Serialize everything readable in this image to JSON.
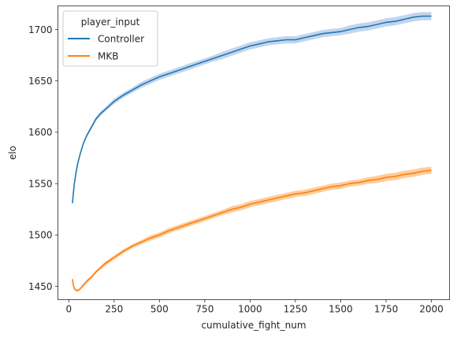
{
  "chart_data": {
    "type": "line",
    "title": "",
    "xlabel": "cumulative_fight_num",
    "ylabel": "elo",
    "xlim": [
      -60,
      2100
    ],
    "ylim": [
      1437,
      1723
    ],
    "xticks": [
      0,
      250,
      500,
      750,
      1000,
      1250,
      1500,
      1750,
      2000
    ],
    "yticks": [
      1450,
      1500,
      1550,
      1600,
      1650,
      1700
    ],
    "grid": false,
    "legend": {
      "title": "player_input",
      "position": "top-left"
    },
    "series": [
      {
        "name": "Controller",
        "color": "#1f77b4",
        "band_color": "#aec7e8",
        "x": [
          20,
          30,
          40,
          50,
          60,
          80,
          100,
          125,
          150,
          175,
          200,
          250,
          300,
          350,
          400,
          450,
          500,
          550,
          600,
          650,
          700,
          750,
          800,
          850,
          900,
          950,
          1000,
          1050,
          1100,
          1150,
          1200,
          1250,
          1300,
          1350,
          1400,
          1450,
          1500,
          1550,
          1600,
          1650,
          1700,
          1750,
          1800,
          1850,
          1900,
          1950,
          2000
        ],
        "y": [
          1531,
          1549,
          1561,
          1570,
          1577,
          1589,
          1597,
          1605,
          1613,
          1618,
          1622,
          1630,
          1636,
          1641,
          1646,
          1650,
          1654,
          1657,
          1660,
          1663,
          1666,
          1669,
          1672,
          1675,
          1678,
          1681,
          1684,
          1686,
          1688,
          1689,
          1690,
          1690,
          1692,
          1694,
          1696,
          1697,
          1698,
          1700,
          1702,
          1703,
          1705,
          1707,
          1708,
          1710,
          1712,
          1713,
          1713
        ],
        "band": [
          1,
          1,
          1,
          1,
          1,
          1.5,
          1.5,
          2,
          2,
          2,
          2,
          2.5,
          2.5,
          2.5,
          3,
          3,
          3,
          3,
          3,
          3,
          3,
          3,
          3,
          3.5,
          3.5,
          3.5,
          3.5,
          3.5,
          3.5,
          3.5,
          3.5,
          3.5,
          3.5,
          3.5,
          3.5,
          3.5,
          3.5,
          4,
          4,
          4,
          4,
          4,
          4,
          4,
          4,
          4,
          4
        ]
      },
      {
        "name": "MKB",
        "color": "#ff7f0e",
        "band_color": "#ffbb78",
        "x": [
          20,
          25,
          30,
          40,
          50,
          60,
          70,
          80,
          100,
          125,
          150,
          175,
          200,
          250,
          300,
          350,
          400,
          450,
          500,
          550,
          600,
          650,
          700,
          750,
          800,
          850,
          900,
          950,
          1000,
          1050,
          1100,
          1150,
          1200,
          1250,
          1300,
          1350,
          1400,
          1450,
          1500,
          1550,
          1600,
          1650,
          1700,
          1750,
          1800,
          1850,
          1900,
          1950,
          2000
        ],
        "y": [
          1457,
          1451,
          1448,
          1446,
          1446,
          1447,
          1449,
          1451,
          1455,
          1459,
          1464,
          1468,
          1472,
          1478,
          1484,
          1489,
          1493,
          1497,
          1500,
          1504,
          1507,
          1510,
          1513,
          1516,
          1519,
          1522,
          1525,
          1527,
          1530,
          1532,
          1534,
          1536,
          1538,
          1540,
          1541,
          1543,
          1545,
          1547,
          1548,
          1550,
          1551,
          1553,
          1554,
          1556,
          1557,
          1559,
          1560,
          1562,
          1563
        ],
        "band": [
          1,
          1,
          1,
          1,
          1,
          1,
          1,
          1.5,
          1.5,
          1.5,
          1.5,
          1.5,
          2,
          2,
          2,
          2,
          2,
          2.5,
          2.5,
          2.5,
          2.5,
          2.5,
          2.5,
          2.5,
          2.5,
          2.5,
          3,
          3,
          3,
          3,
          3,
          3,
          3,
          3,
          3,
          3,
          3,
          3,
          3,
          3,
          3,
          3,
          3.5,
          3.5,
          3.5,
          3.5,
          3.5,
          3.5,
          3.5
        ]
      }
    ]
  }
}
